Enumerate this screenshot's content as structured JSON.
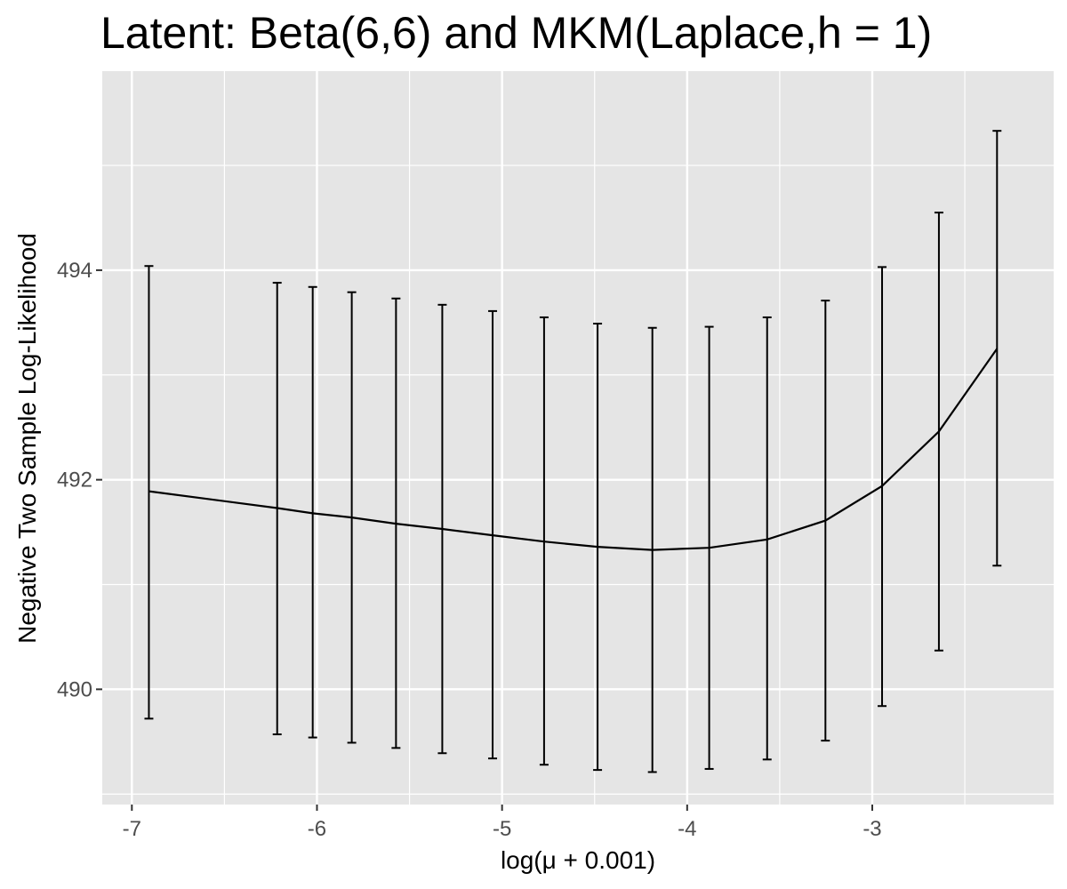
{
  "chart_data": {
    "type": "line",
    "title": "Latent: Beta(6,6) and MKM(Laplace,h = 1)",
    "xlabel": "log(μ + 0.001)",
    "ylabel": "Negative Two Sample Log-Likelihood",
    "xlim": [
      -7.16,
      -2.02
    ],
    "ylim": [
      488.9,
      495.9
    ],
    "x_ticks": [
      -7,
      -6,
      -5,
      -4,
      -3
    ],
    "x_tick_labels": [
      "-7",
      "-6",
      "-5",
      "-4",
      "-3"
    ],
    "y_ticks": [
      490,
      492,
      494
    ],
    "y_tick_labels": [
      "490",
      "492",
      "494"
    ],
    "grid": true,
    "background": "#e5e5e5",
    "grid_color": "#ffffff",
    "line_color": "#000000",
    "series": [
      {
        "x": [
          -6.908,
          -6.215,
          -6.023,
          -5.812,
          -5.573,
          -5.323,
          -5.051,
          -4.773,
          -4.484,
          -4.188,
          -3.881,
          -3.568,
          -3.253,
          -2.947,
          -2.64,
          -2.326
        ],
        "y": [
          491.89,
          491.73,
          491.68,
          491.64,
          491.58,
          491.53,
          491.47,
          491.41,
          491.36,
          491.33,
          491.35,
          491.43,
          491.61,
          491.94,
          492.46,
          493.25
        ],
        "lower": [
          489.72,
          489.57,
          489.54,
          489.49,
          489.44,
          489.39,
          489.34,
          489.28,
          489.23,
          489.21,
          489.24,
          489.33,
          489.51,
          489.84,
          490.37,
          491.18
        ],
        "upper": [
          494.04,
          493.88,
          493.84,
          493.79,
          493.73,
          493.67,
          493.61,
          493.55,
          493.49,
          493.45,
          493.46,
          493.55,
          493.71,
          494.03,
          494.55,
          495.33
        ]
      }
    ]
  }
}
